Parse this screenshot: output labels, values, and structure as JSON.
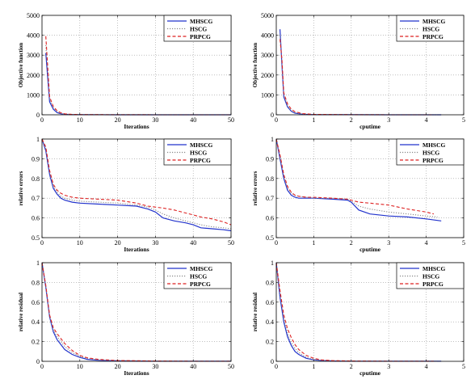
{
  "colors": {
    "MHSCG": "#2233cc",
    "HSCG": "#888888",
    "PRPCG": "#dd2222"
  },
  "chart_data": [
    {
      "type": "line",
      "xlabel": "Iterations",
      "ylabel": "Objective function",
      "xlim": [
        0,
        50
      ],
      "ylim": [
        0,
        5000
      ],
      "xticks": [
        "0",
        "10",
        "20",
        "30",
        "40",
        "50"
      ],
      "yticks": [
        "0",
        "1000",
        "2000",
        "3000",
        "4000",
        "5000"
      ],
      "grid": true,
      "legend_position": "top-right",
      "series": [
        {
          "name": "MHSCG",
          "x": [
            1,
            2,
            3,
            4,
            5,
            6,
            8,
            10,
            20,
            30,
            40,
            50
          ],
          "y": [
            3100,
            650,
            280,
            110,
            50,
            25,
            10,
            5,
            2,
            1,
            1,
            1
          ]
        },
        {
          "name": "HSCG",
          "x": [
            1,
            2,
            3,
            4,
            5,
            6,
            8,
            10,
            20,
            30,
            40,
            50
          ],
          "y": [
            3500,
            800,
            350,
            150,
            70,
            35,
            15,
            8,
            3,
            2,
            1,
            1
          ]
        },
        {
          "name": "PRPCG",
          "x": [
            1,
            2,
            3,
            4,
            5,
            6,
            8,
            10,
            20,
            30,
            40,
            50
          ],
          "y": [
            3950,
            900,
            420,
            200,
            100,
            50,
            20,
            10,
            4,
            2,
            1,
            1
          ]
        }
      ]
    },
    {
      "type": "line",
      "xlabel": "cputime",
      "ylabel": "Objective function",
      "xlim": [
        0,
        5
      ],
      "ylim": [
        0,
        5000
      ],
      "xticks": [
        "0",
        "1",
        "2",
        "3",
        "4",
        "5"
      ],
      "yticks": [
        "0",
        "1000",
        "2000",
        "3000",
        "4000",
        "5000"
      ],
      "grid": true,
      "legend_position": "top-right",
      "series": [
        {
          "name": "MHSCG",
          "x": [
            0.1,
            0.15,
            0.2,
            0.3,
            0.4,
            0.5,
            0.7,
            1.0,
            2.0,
            3.0,
            4.0,
            4.4
          ],
          "y": [
            4300,
            2500,
            900,
            400,
            180,
            80,
            30,
            10,
            3,
            1,
            1,
            1
          ]
        },
        {
          "name": "HSCG",
          "x": [
            0.1,
            0.15,
            0.2,
            0.3,
            0.4,
            0.5,
            0.7,
            1.0,
            2.0,
            3.0,
            4.0,
            4.3
          ],
          "y": [
            4000,
            2600,
            1000,
            450,
            200,
            100,
            40,
            15,
            4,
            2,
            1,
            1
          ]
        },
        {
          "name": "PRPCG",
          "x": [
            0.1,
            0.15,
            0.2,
            0.3,
            0.4,
            0.5,
            0.7,
            1.0,
            2.0,
            3.0,
            4.0,
            4.2
          ],
          "y": [
            3800,
            2800,
            1100,
            550,
            280,
            150,
            60,
            20,
            5,
            2,
            1,
            1
          ]
        }
      ]
    },
    {
      "type": "line",
      "xlabel": "Iterations",
      "ylabel": "relative errors",
      "xlim": [
        0,
        50
      ],
      "ylim": [
        0.5,
        1.0
      ],
      "xticks": [
        "0",
        "10",
        "20",
        "30",
        "40",
        "50"
      ],
      "yticks": [
        "0.5",
        "0.6",
        "0.7",
        "0.8",
        "0.9",
        "1"
      ],
      "grid": true,
      "legend_position": "top-right",
      "series": [
        {
          "name": "MHSCG",
          "x": [
            0,
            1,
            2,
            3,
            4,
            5,
            6,
            8,
            10,
            15,
            20,
            25,
            28,
            30,
            32,
            35,
            38,
            40,
            42,
            45,
            48,
            50
          ],
          "y": [
            1.0,
            0.94,
            0.82,
            0.75,
            0.72,
            0.7,
            0.69,
            0.68,
            0.675,
            0.67,
            0.665,
            0.66,
            0.645,
            0.63,
            0.6,
            0.585,
            0.575,
            0.565,
            0.55,
            0.545,
            0.54,
            0.535
          ]
        },
        {
          "name": "HSCG",
          "x": [
            0,
            1,
            2,
            3,
            4,
            5,
            6,
            8,
            10,
            15,
            20,
            25,
            28,
            30,
            32,
            35,
            38,
            40,
            42,
            45,
            48,
            50
          ],
          "y": [
            1.0,
            0.95,
            0.83,
            0.76,
            0.73,
            0.71,
            0.7,
            0.69,
            0.685,
            0.68,
            0.675,
            0.665,
            0.655,
            0.64,
            0.62,
            0.6,
            0.585,
            0.575,
            0.565,
            0.555,
            0.55,
            0.545
          ]
        },
        {
          "name": "PRPCG",
          "x": [
            0,
            1,
            2,
            3,
            4,
            5,
            6,
            8,
            10,
            15,
            20,
            25,
            28,
            30,
            32,
            35,
            38,
            40,
            42,
            45,
            48,
            50
          ],
          "y": [
            1.0,
            0.96,
            0.84,
            0.77,
            0.74,
            0.725,
            0.715,
            0.705,
            0.7,
            0.695,
            0.69,
            0.675,
            0.66,
            0.655,
            0.65,
            0.64,
            0.625,
            0.615,
            0.605,
            0.595,
            0.58,
            0.565
          ]
        }
      ]
    },
    {
      "type": "line",
      "xlabel": "cputime",
      "ylabel": "relative errors",
      "xlim": [
        0,
        5
      ],
      "ylim": [
        0.5,
        1.0
      ],
      "xticks": [
        "0",
        "1",
        "2",
        "3",
        "4",
        "5"
      ],
      "yticks": [
        "0.5",
        "0.6",
        "0.7",
        "0.8",
        "0.9",
        "1"
      ],
      "grid": true,
      "legend_position": "top-right",
      "series": [
        {
          "name": "MHSCG",
          "x": [
            0,
            0.1,
            0.2,
            0.3,
            0.4,
            0.5,
            0.6,
            0.8,
            1.0,
            1.5,
            1.9,
            2.0,
            2.2,
            2.5,
            3.0,
            3.5,
            4.0,
            4.4
          ],
          "y": [
            1.0,
            0.9,
            0.8,
            0.74,
            0.715,
            0.705,
            0.7,
            0.7,
            0.7,
            0.695,
            0.69,
            0.68,
            0.64,
            0.62,
            0.61,
            0.605,
            0.595,
            0.585
          ]
        },
        {
          "name": "HSCG",
          "x": [
            0,
            0.1,
            0.2,
            0.3,
            0.4,
            0.5,
            0.6,
            0.8,
            1.0,
            1.5,
            1.9,
            2.0,
            2.2,
            2.5,
            3.0,
            3.5,
            4.0,
            4.3
          ],
          "y": [
            1.0,
            0.91,
            0.81,
            0.75,
            0.725,
            0.715,
            0.71,
            0.705,
            0.7,
            0.7,
            0.695,
            0.685,
            0.66,
            0.645,
            0.63,
            0.62,
            0.61,
            0.605
          ]
        },
        {
          "name": "PRPCG",
          "x": [
            0,
            0.1,
            0.2,
            0.3,
            0.4,
            0.5,
            0.6,
            0.8,
            1.0,
            1.5,
            1.9,
            2.0,
            2.2,
            2.5,
            3.0,
            3.5,
            4.0,
            4.2
          ],
          "y": [
            1.0,
            0.92,
            0.82,
            0.76,
            0.73,
            0.715,
            0.71,
            0.705,
            0.705,
            0.7,
            0.695,
            0.69,
            0.68,
            0.675,
            0.665,
            0.645,
            0.63,
            0.62
          ]
        }
      ]
    },
    {
      "type": "line",
      "xlabel": "Iterations",
      "ylabel": "relative residual",
      "xlim": [
        0,
        50
      ],
      "ylim": [
        0,
        1.0
      ],
      "xticks": [
        "0",
        "10",
        "20",
        "30",
        "40",
        "50"
      ],
      "yticks": [
        "0",
        "0.2",
        "0.4",
        "0.6",
        "0.8",
        "1"
      ],
      "grid": true,
      "legend_position": "top-right",
      "series": [
        {
          "name": "MHSCG",
          "x": [
            0,
            1,
            2,
            3,
            4,
            6,
            8,
            10,
            12,
            15,
            20,
            30,
            40,
            50
          ],
          "y": [
            1.0,
            0.75,
            0.45,
            0.3,
            0.22,
            0.12,
            0.07,
            0.04,
            0.02,
            0.01,
            0.005,
            0.002,
            0.001,
            0.001
          ]
        },
        {
          "name": "HSCG",
          "x": [
            0,
            1,
            2,
            3,
            4,
            6,
            8,
            10,
            12,
            15,
            20,
            30,
            40,
            50
          ],
          "y": [
            1.0,
            0.76,
            0.46,
            0.32,
            0.25,
            0.15,
            0.09,
            0.05,
            0.03,
            0.015,
            0.007,
            0.003,
            0.001,
            0.001
          ]
        },
        {
          "name": "PRPCG",
          "x": [
            0,
            1,
            2,
            3,
            4,
            6,
            8,
            10,
            12,
            15,
            20,
            30,
            40,
            50
          ],
          "y": [
            1.0,
            0.77,
            0.47,
            0.34,
            0.28,
            0.18,
            0.11,
            0.06,
            0.035,
            0.02,
            0.008,
            0.003,
            0.001,
            0.001
          ]
        }
      ]
    },
    {
      "type": "line",
      "xlabel": "cputime",
      "ylabel": "relative residual",
      "xlim": [
        0,
        5
      ],
      "ylim": [
        0,
        1.0
      ],
      "xticks": [
        "0",
        "1",
        "2",
        "3",
        "4",
        "5"
      ],
      "yticks": [
        "0",
        "0.2",
        "0.4",
        "0.6",
        "0.8",
        "1"
      ],
      "grid": true,
      "legend_position": "top-right",
      "series": [
        {
          "name": "MHSCG",
          "x": [
            0,
            0.1,
            0.2,
            0.3,
            0.4,
            0.5,
            0.6,
            0.8,
            1.0,
            1.2,
            1.5,
            2.0,
            3.0,
            4.0,
            4.4
          ],
          "y": [
            1.0,
            0.65,
            0.4,
            0.25,
            0.16,
            0.1,
            0.07,
            0.03,
            0.015,
            0.008,
            0.004,
            0.002,
            0.001,
            0.001,
            0.001
          ]
        },
        {
          "name": "HSCG",
          "x": [
            0,
            0.1,
            0.2,
            0.3,
            0.4,
            0.5,
            0.6,
            0.8,
            1.0,
            1.2,
            1.5,
            2.0,
            3.0,
            4.0,
            4.3
          ],
          "y": [
            1.0,
            0.68,
            0.43,
            0.28,
            0.19,
            0.13,
            0.09,
            0.04,
            0.02,
            0.01,
            0.005,
            0.002,
            0.001,
            0.001,
            0.001
          ]
        },
        {
          "name": "PRPCG",
          "x": [
            0,
            0.1,
            0.2,
            0.3,
            0.4,
            0.5,
            0.6,
            0.8,
            1.0,
            1.2,
            1.5,
            2.0,
            3.0,
            4.0,
            4.2
          ],
          "y": [
            1.0,
            0.72,
            0.47,
            0.33,
            0.24,
            0.17,
            0.12,
            0.06,
            0.03,
            0.015,
            0.007,
            0.003,
            0.001,
            0.001,
            0.001
          ]
        }
      ]
    }
  ]
}
